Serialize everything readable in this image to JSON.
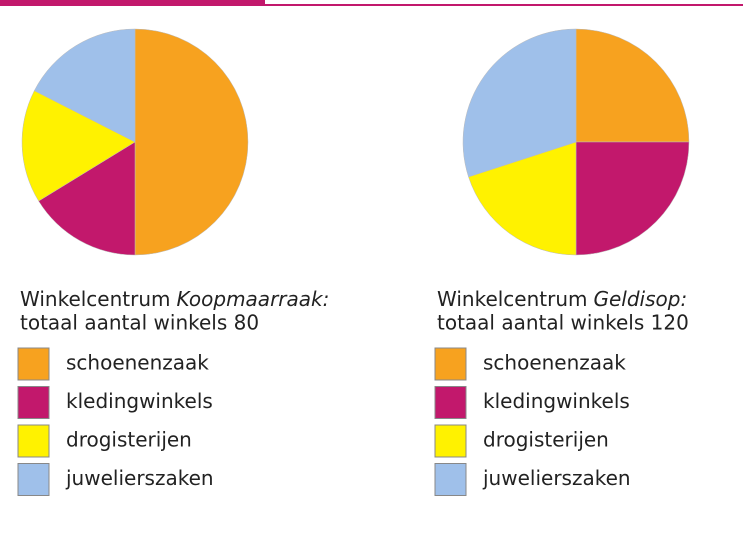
{
  "chart_data": [
    {
      "type": "pie",
      "title": "Winkelcentrum",
      "title_italic": "Koopmaarraak:",
      "subtitle": "totaal aantal winkels 80",
      "categories": [
        "schoenenzaak",
        "kledingwinkels",
        "drogisterijen",
        "juwelierszaken"
      ],
      "colors": [
        "#f7a21f",
        "#c2186c",
        "#fff200",
        "#9fc0ea"
      ],
      "values": [
        40,
        13,
        13,
        14
      ]
    },
    {
      "type": "pie",
      "title": "Winkelcentrum",
      "title_italic": "Geldisop:",
      "subtitle": "totaal aantal winkels 120",
      "categories": [
        "schoenenzaak",
        "kledingwinkels",
        "drogisterijen",
        "juwelierszaken"
      ],
      "colors": [
        "#f7a21f",
        "#c2186c",
        "#fff200",
        "#9fc0ea"
      ],
      "values": [
        30,
        30,
        24,
        36
      ]
    }
  ]
}
